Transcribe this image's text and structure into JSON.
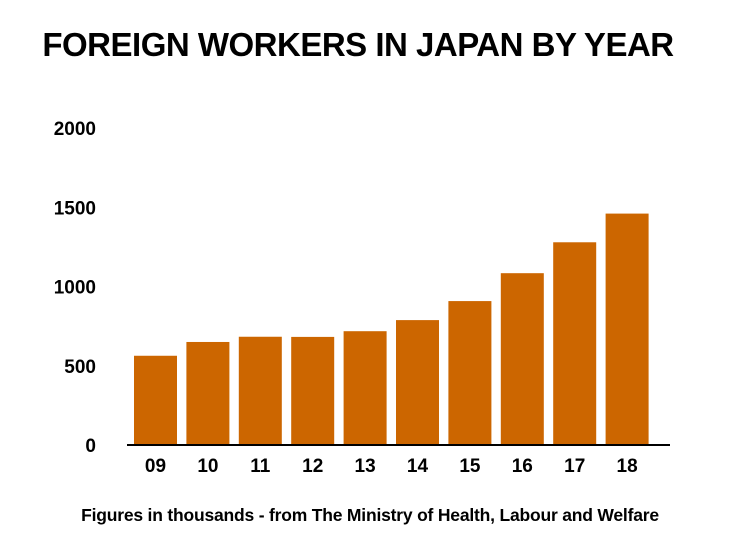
{
  "chart_data": {
    "type": "bar",
    "title": "FOREIGN WORKERS IN JAPAN BY YEAR",
    "note": "Figures in thousands - from The Ministry of Health, Labour and Welfare",
    "categories": [
      "09",
      "10",
      "11",
      "12",
      "13",
      "14",
      "15",
      "16",
      "17",
      "18"
    ],
    "values": [
      563,
      650,
      683,
      682,
      718,
      788,
      908,
      1084,
      1279,
      1460
    ],
    "ylim": [
      0,
      2000
    ],
    "yticks": [
      "0",
      "500",
      "1000",
      "1500",
      "2000"
    ],
    "bar_color": "#cc6600",
    "grid": false
  }
}
